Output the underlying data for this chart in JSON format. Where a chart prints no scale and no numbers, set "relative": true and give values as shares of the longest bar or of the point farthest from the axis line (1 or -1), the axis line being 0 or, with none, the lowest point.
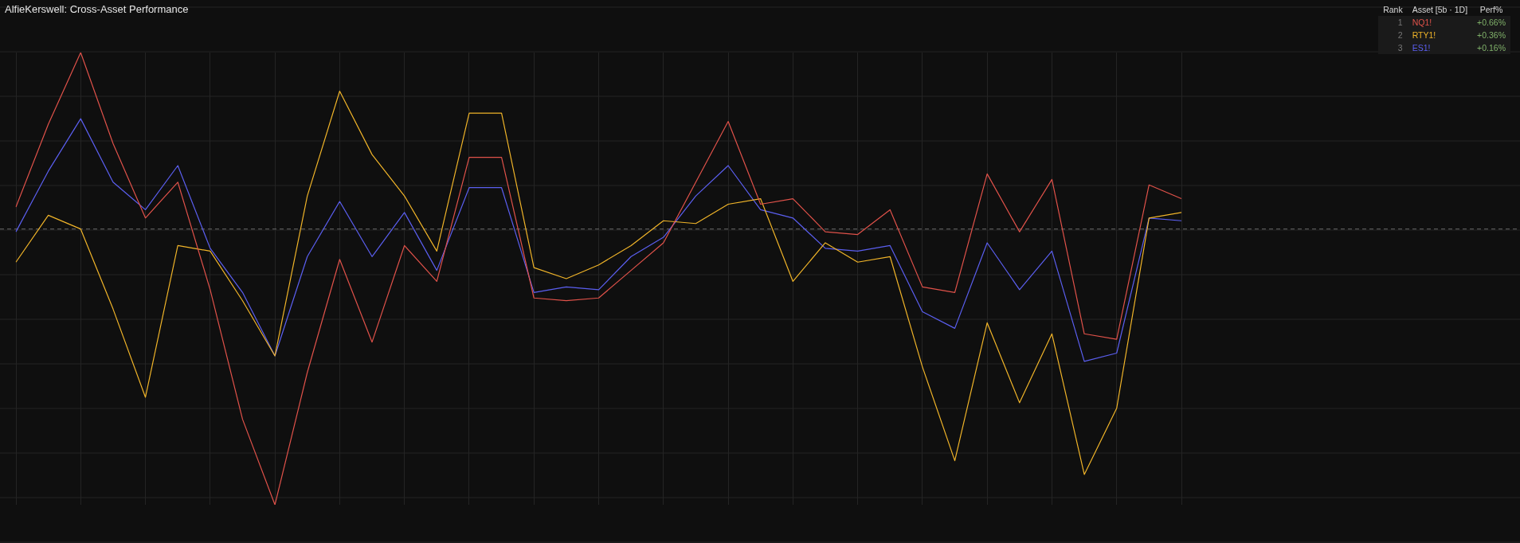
{
  "chart_data": {
    "type": "line",
    "title": "AlfieKerswell: Cross-Asset Performance",
    "relative": true,
    "grid": true,
    "legend": "top right",
    "marker": "none",
    "line_style": "solid",
    "categories": [
      null,
      null,
      null,
      null,
      null,
      null,
      null,
      null,
      null,
      null,
      null,
      null,
      null,
      null,
      null,
      null,
      null,
      null,
      null,
      null,
      null,
      null,
      null,
      null,
      null,
      null,
      null,
      null,
      null,
      null,
      null,
      null,
      null,
      null,
      null,
      null,
      null
    ],
    "series": [
      {
        "name": "NQ1!",
        "color": "#e0524a",
        "values": [
          0.08,
          0.38,
          0.64,
          0.31,
          0.04,
          0.17,
          -0.22,
          -0.69,
          -1,
          -0.52,
          -0.11,
          -0.41,
          -0.06,
          -0.19,
          0.26,
          0.26,
          -0.25,
          -0.26,
          -0.25,
          -0.15,
          -0.05,
          0.17,
          0.39,
          0.09,
          0.11,
          -0.01,
          -0.02,
          0.07,
          -0.21,
          -0.23,
          0.2,
          -0.01,
          0.18,
          -0.38,
          -0.4,
          0.16,
          0.11
        ]
      },
      {
        "name": "RTY1!",
        "color": "#f0b429",
        "values": [
          -0.12,
          0.05,
          0,
          -0.29,
          -0.61,
          -0.06,
          -0.08,
          -0.26,
          -0.46,
          0.12,
          0.5,
          0.27,
          0.12,
          -0.08,
          0.42,
          0.42,
          -0.14,
          -0.18,
          -0.13,
          -0.06,
          0.03,
          0.02,
          0.09,
          0.11,
          -0.19,
          -0.05,
          -0.12,
          -0.1,
          -0.5,
          -0.84,
          -0.34,
          -0.63,
          -0.38,
          -0.89,
          -0.65,
          0.04,
          0.06
        ]
      },
      {
        "name": "ES1!",
        "color": "#5b5ff0",
        "values": [
          -0.01,
          0.21,
          0.4,
          0.17,
          0.07,
          0.23,
          -0.07,
          -0.23,
          -0.46,
          -0.1,
          0.1,
          -0.1,
          0.06,
          -0.15,
          0.15,
          0.15,
          -0.23,
          -0.21,
          -0.22,
          -0.1,
          -0.03,
          0.12,
          0.23,
          0.07,
          0.04,
          -0.07,
          -0.08,
          -0.06,
          -0.3,
          -0.36,
          -0.05,
          -0.22,
          -0.08,
          -0.48,
          -0.45,
          0.04,
          0.03
        ]
      }
    ],
    "ref_lines": [
      {
        "axis": "y",
        "value": 0,
        "line_style": "dashed",
        "color": "#6a6a6a"
      }
    ],
    "annotations": [
      "Rank",
      "Asset [5b · 1D]",
      "Perf%",
      "1",
      "+0.66%",
      "2",
      "+0.36%",
      "3",
      "+0.16%"
    ]
  }
}
